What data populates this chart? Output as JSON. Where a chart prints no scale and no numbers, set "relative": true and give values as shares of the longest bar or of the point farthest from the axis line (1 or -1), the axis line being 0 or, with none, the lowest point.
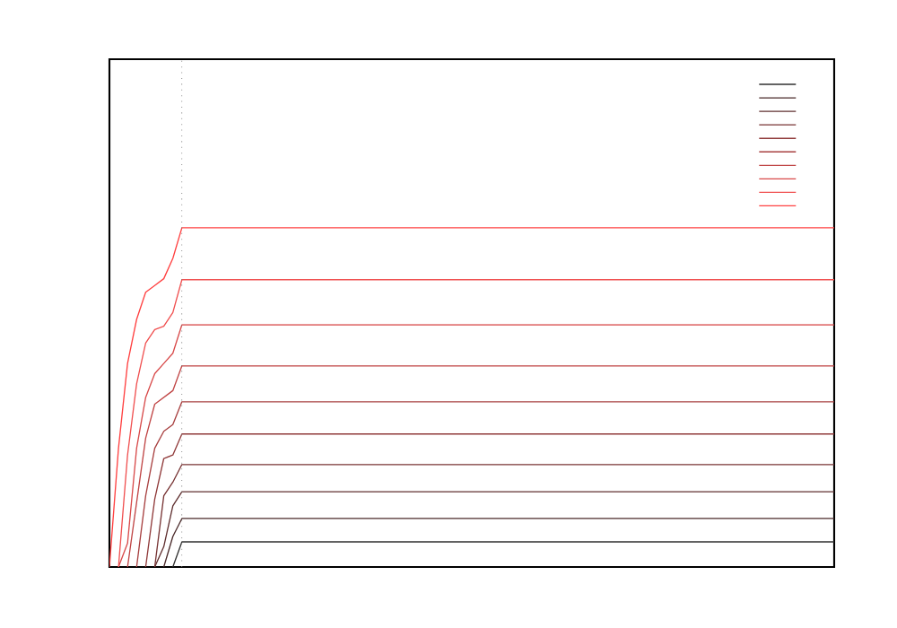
{
  "chart_data": {
    "type": "line",
    "relative": true,
    "line_style": "solid",
    "marker": "none",
    "categories": [
      null,
      null,
      null,
      null,
      null,
      null,
      null,
      null,
      null,
      null,
      null,
      null,
      null,
      null,
      null,
      null,
      null,
      null,
      null,
      null,
      null,
      null,
      null,
      null,
      null,
      null,
      null,
      null,
      null,
      null,
      null,
      null,
      null,
      null,
      null,
      null,
      null,
      null,
      null,
      null,
      null,
      null,
      null,
      null,
      null,
      null,
      null,
      null,
      null,
      null,
      null,
      null,
      null,
      null,
      null,
      null,
      null,
      null,
      null,
      null,
      null,
      null,
      null,
      null,
      null,
      null,
      null,
      null,
      null,
      null,
      null,
      null,
      null,
      null,
      null,
      null,
      null,
      null,
      null,
      null,
      null
    ],
    "series": [
      {
        "color": "#303030",
        "values": [
          null,
          null,
          null,
          null,
          null,
          null,
          null,
          0,
          0.074,
          0.074,
          0.074,
          0.074,
          0.074,
          0.074,
          0.074,
          0.074,
          0.074,
          0.074,
          0.074,
          0.074,
          0.074,
          0.074,
          0.074,
          0.074,
          0.074,
          0.074,
          0.074,
          0.074,
          0.074,
          0.074,
          0.074,
          0.074,
          0.074,
          0.074,
          0.074,
          0.074,
          0.074,
          0.074,
          0.074,
          0.074,
          0.074,
          0.074,
          0.074,
          0.074,
          0.074,
          0.074,
          0.074,
          0.074,
          0.074,
          0.074,
          0.074,
          0.074,
          0.074,
          0.074,
          0.074,
          0.074,
          0.074,
          0.074,
          0.074,
          0.074,
          0.074,
          0.074,
          0.074,
          0.074,
          0.074,
          0.074,
          0.074,
          0.074,
          0.074,
          0.074,
          0.074,
          0.074,
          0.074,
          0.074,
          0.074,
          0.074,
          0.074,
          0.074,
          0.074,
          0.074,
          0.074
        ]
      },
      {
        "color": "#4a2a2a",
        "values": [
          null,
          null,
          null,
          null,
          null,
          null,
          0,
          0.09,
          0.143,
          0.143,
          0.143,
          0.143,
          0.143,
          0.143,
          0.143,
          0.143,
          0.143,
          0.143,
          0.143,
          0.143,
          0.143,
          0.143,
          0.143,
          0.143,
          0.143,
          0.143,
          0.143,
          0.143,
          0.143,
          0.143,
          0.143,
          0.143,
          0.143,
          0.143,
          0.143,
          0.143,
          0.143,
          0.143,
          0.143,
          0.143,
          0.143,
          0.143,
          0.143,
          0.143,
          0.143,
          0.143,
          0.143,
          0.143,
          0.143,
          0.143,
          0.143,
          0.143,
          0.143,
          0.143,
          0.143,
          0.143,
          0.143,
          0.143,
          0.143,
          0.143,
          0.143,
          0.143,
          0.143,
          0.143,
          0.143,
          0.143,
          0.143,
          0.143,
          0.143,
          0.143,
          0.143,
          0.143,
          0.143,
          0.143,
          0.143,
          0.143,
          0.143,
          0.143,
          0.143,
          0.143,
          0.143
        ]
      },
      {
        "color": "#603030",
        "values": [
          null,
          null,
          null,
          null,
          null,
          0,
          0.06,
          0.18,
          0.222,
          0.222,
          0.222,
          0.222,
          0.222,
          0.222,
          0.222,
          0.222,
          0.222,
          0.222,
          0.222,
          0.222,
          0.222,
          0.222,
          0.222,
          0.222,
          0.222,
          0.222,
          0.222,
          0.222,
          0.222,
          0.222,
          0.222,
          0.222,
          0.222,
          0.222,
          0.222,
          0.222,
          0.222,
          0.222,
          0.222,
          0.222,
          0.222,
          0.222,
          0.222,
          0.222,
          0.222,
          0.222,
          0.222,
          0.222,
          0.222,
          0.222,
          0.222,
          0.222,
          0.222,
          0.222,
          0.222,
          0.222,
          0.222,
          0.222,
          0.222,
          0.222,
          0.222,
          0.222,
          0.222,
          0.222,
          0.222,
          0.222,
          0.222,
          0.222,
          0.222,
          0.222,
          0.222,
          0.222,
          0.222,
          0.222,
          0.222,
          0.222,
          0.222,
          0.222,
          0.222,
          0.222,
          0.222
        ]
      },
      {
        "color": "#783535",
        "values": [
          null,
          null,
          null,
          null,
          null,
          0,
          0.21,
          0.25,
          0.302,
          0.302,
          0.302,
          0.302,
          0.302,
          0.302,
          0.302,
          0.302,
          0.302,
          0.302,
          0.302,
          0.302,
          0.302,
          0.302,
          0.302,
          0.302,
          0.302,
          0.302,
          0.302,
          0.302,
          0.302,
          0.302,
          0.302,
          0.302,
          0.302,
          0.302,
          0.302,
          0.302,
          0.302,
          0.302,
          0.302,
          0.302,
          0.302,
          0.302,
          0.302,
          0.302,
          0.302,
          0.302,
          0.302,
          0.302,
          0.302,
          0.302,
          0.302,
          0.302,
          0.302,
          0.302,
          0.302,
          0.302,
          0.302,
          0.302,
          0.302,
          0.302,
          0.302,
          0.302,
          0.302,
          0.302,
          0.302,
          0.302,
          0.302,
          0.302,
          0.302,
          0.302,
          0.302,
          0.302,
          0.302,
          0.302,
          0.302,
          0.302,
          0.302,
          0.302,
          0.302,
          0.302,
          0.302
        ]
      },
      {
        "color": "#903a3a",
        "values": [
          null,
          null,
          null,
          null,
          0,
          0.2,
          0.32,
          0.33,
          0.392,
          0.392,
          0.392,
          0.392,
          0.392,
          0.392,
          0.392,
          0.392,
          0.392,
          0.392,
          0.392,
          0.392,
          0.392,
          0.392,
          0.392,
          0.392,
          0.392,
          0.392,
          0.392,
          0.392,
          0.392,
          0.392,
          0.392,
          0.392,
          0.392,
          0.392,
          0.392,
          0.392,
          0.392,
          0.392,
          0.392,
          0.392,
          0.392,
          0.392,
          0.392,
          0.392,
          0.392,
          0.392,
          0.392,
          0.392,
          0.392,
          0.392,
          0.392,
          0.392,
          0.392,
          0.392,
          0.392,
          0.392,
          0.392,
          0.392,
          0.392,
          0.392,
          0.392,
          0.392,
          0.392,
          0.392,
          0.392,
          0.392,
          0.392,
          0.392,
          0.392,
          0.392,
          0.392,
          0.392,
          0.392,
          0.392,
          0.392,
          0.392,
          0.392,
          0.392,
          0.392,
          0.392,
          0.392
        ]
      },
      {
        "color": "#a84040",
        "values": [
          null,
          null,
          null,
          0,
          0.21,
          0.35,
          0.4,
          0.42,
          0.487,
          0.487,
          0.487,
          0.487,
          0.487,
          0.487,
          0.487,
          0.487,
          0.487,
          0.487,
          0.487,
          0.487,
          0.487,
          0.487,
          0.487,
          0.487,
          0.487,
          0.487,
          0.487,
          0.487,
          0.487,
          0.487,
          0.487,
          0.487,
          0.487,
          0.487,
          0.487,
          0.487,
          0.487,
          0.487,
          0.487,
          0.487,
          0.487,
          0.487,
          0.487,
          0.487,
          0.487,
          0.487,
          0.487,
          0.487,
          0.487,
          0.487,
          0.487,
          0.487,
          0.487,
          0.487,
          0.487,
          0.487,
          0.487,
          0.487,
          0.487,
          0.487,
          0.487,
          0.487,
          0.487,
          0.487,
          0.487,
          0.487,
          0.487,
          0.487,
          0.487,
          0.487,
          0.487,
          0.487,
          0.487,
          0.487,
          0.487,
          0.487,
          0.487,
          0.487,
          0.487,
          0.487,
          0.487
        ]
      },
      {
        "color": "#c04545",
        "values": [
          null,
          null,
          0,
          0.19,
          0.38,
          0.48,
          0.5,
          0.52,
          0.593,
          0.593,
          0.593,
          0.593,
          0.593,
          0.593,
          0.593,
          0.593,
          0.593,
          0.593,
          0.593,
          0.593,
          0.593,
          0.593,
          0.593,
          0.593,
          0.593,
          0.593,
          0.593,
          0.593,
          0.593,
          0.593,
          0.593,
          0.593,
          0.593,
          0.593,
          0.593,
          0.593,
          0.593,
          0.593,
          0.593,
          0.593,
          0.593,
          0.593,
          0.593,
          0.593,
          0.593,
          0.593,
          0.593,
          0.593,
          0.593,
          0.593,
          0.593,
          0.593,
          0.593,
          0.593,
          0.593,
          0.593,
          0.593,
          0.593,
          0.593,
          0.593,
          0.593,
          0.593,
          0.593,
          0.593,
          0.593,
          0.593,
          0.593,
          0.593,
          0.593,
          0.593,
          0.593,
          0.593,
          0.593,
          0.593,
          0.593,
          0.593,
          0.593,
          0.593,
          0.593,
          0.593,
          0.593
        ]
      },
      {
        "color": "#d84a4a",
        "values": [
          null,
          0,
          0.07,
          0.35,
          0.5,
          0.57,
          0.6,
          0.63,
          0.714,
          0.714,
          0.714,
          0.714,
          0.714,
          0.714,
          0.714,
          0.714,
          0.714,
          0.714,
          0.714,
          0.714,
          0.714,
          0.714,
          0.714,
          0.714,
          0.714,
          0.714,
          0.714,
          0.714,
          0.714,
          0.714,
          0.714,
          0.714,
          0.714,
          0.714,
          0.714,
          0.714,
          0.714,
          0.714,
          0.714,
          0.714,
          0.714,
          0.714,
          0.714,
          0.714,
          0.714,
          0.714,
          0.714,
          0.714,
          0.714,
          0.714,
          0.714,
          0.714,
          0.714,
          0.714,
          0.714,
          0.714,
          0.714,
          0.714,
          0.714,
          0.714,
          0.714,
          0.714,
          0.714,
          0.714,
          0.714,
          0.714,
          0.714,
          0.714,
          0.714,
          0.714,
          0.714,
          0.714,
          0.714,
          0.714,
          0.714,
          0.714,
          0.714,
          0.714,
          0.714,
          0.714,
          0.714
        ]
      },
      {
        "color": "#f05050",
        "values": [
          null,
          0,
          0.33,
          0.54,
          0.66,
          0.7,
          0.71,
          0.75,
          0.847,
          0.847,
          0.847,
          0.847,
          0.847,
          0.847,
          0.847,
          0.847,
          0.847,
          0.847,
          0.847,
          0.847,
          0.847,
          0.847,
          0.847,
          0.847,
          0.847,
          0.847,
          0.847,
          0.847,
          0.847,
          0.847,
          0.847,
          0.847,
          0.847,
          0.847,
          0.847,
          0.847,
          0.847,
          0.847,
          0.847,
          0.847,
          0.847,
          0.847,
          0.847,
          0.847,
          0.847,
          0.847,
          0.847,
          0.847,
          0.847,
          0.847,
          0.847,
          0.847,
          0.847,
          0.847,
          0.847,
          0.847,
          0.847,
          0.847,
          0.847,
          0.847,
          0.847,
          0.847,
          0.847,
          0.847,
          0.847,
          0.847,
          0.847,
          0.847,
          0.847,
          0.847,
          0.847,
          0.847,
          0.847,
          0.847,
          0.847,
          0.847,
          0.847,
          0.847,
          0.847,
          0.847,
          0.847
        ]
      },
      {
        "color": "#ff4040",
        "values": [
          0,
          0.35,
          0.6,
          0.73,
          0.81,
          0.83,
          0.85,
          0.91,
          1,
          1,
          1,
          1,
          1,
          1,
          1,
          1,
          1,
          1,
          1,
          1,
          1,
          1,
          1,
          1,
          1,
          1,
          1,
          1,
          1,
          1,
          1,
          1,
          1,
          1,
          1,
          1,
          1,
          1,
          1,
          1,
          1,
          1,
          1,
          1,
          1,
          1,
          1,
          1,
          1,
          1,
          1,
          1,
          1,
          1,
          1,
          1,
          1,
          1,
          1,
          1,
          1,
          1,
          1,
          1,
          1,
          1,
          1,
          1,
          1,
          1,
          1,
          1,
          1,
          1,
          1,
          1,
          1,
          1,
          1,
          1,
          1
        ]
      }
    ]
  }
}
